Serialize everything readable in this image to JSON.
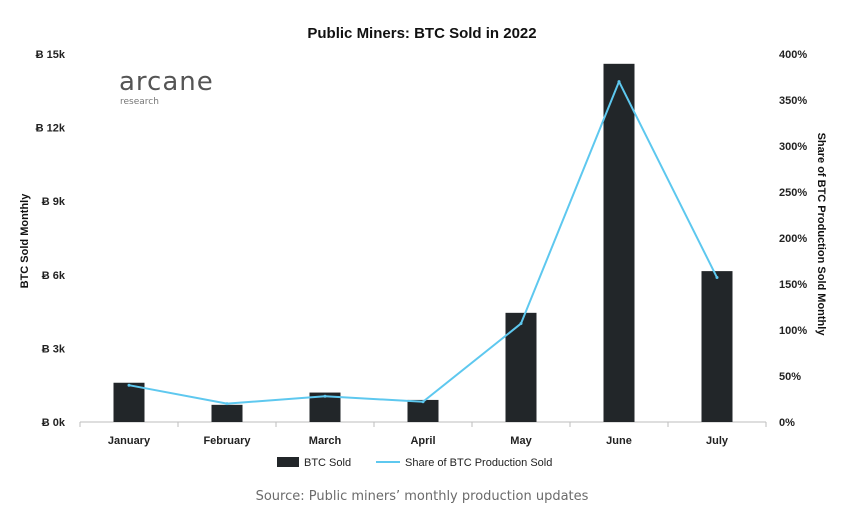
{
  "chart_data": {
    "type": "bar",
    "title": "Public Miners: BTC Sold in 2022",
    "categories": [
      "January",
      "February",
      "March",
      "April",
      "May",
      "June",
      "July"
    ],
    "series": [
      {
        "name": "BTC Sold",
        "kind": "bar",
        "axis": "left",
        "color": "#222629",
        "values": [
          1600,
          700,
          1200,
          900,
          4450,
          14600,
          6150
        ]
      },
      {
        "name": "Share of BTC Production Sold",
        "kind": "line",
        "axis": "right",
        "color": "#5ec8ef",
        "values": [
          40,
          20,
          28,
          22,
          107,
          370,
          157
        ]
      }
    ],
    "y_left": {
      "label": "BTC Sold Monthly",
      "ylim": [
        0,
        15000
      ],
      "ticks": [
        0,
        3000,
        6000,
        9000,
        12000,
        15000
      ],
      "tick_labels": [
        "Ƀ 0k",
        "Ƀ 3k",
        "Ƀ 6k",
        "Ƀ 9k",
        "Ƀ 12k",
        "Ƀ 15k"
      ]
    },
    "y_right": {
      "label": "Share of BTC Production Sold Monthly",
      "ylim": [
        0,
        400
      ],
      "ticks": [
        0,
        50,
        100,
        150,
        200,
        250,
        300,
        350,
        400
      ],
      "tick_labels": [
        "0%",
        "50%",
        "100%",
        "150%",
        "200%",
        "250%",
        "300%",
        "350%",
        "400%"
      ]
    },
    "legend": {
      "placement": "bottom"
    },
    "grid": false
  },
  "logo": {
    "name": "arcane",
    "sub": "research"
  },
  "source": "Source: Public miners’ monthly production updates"
}
